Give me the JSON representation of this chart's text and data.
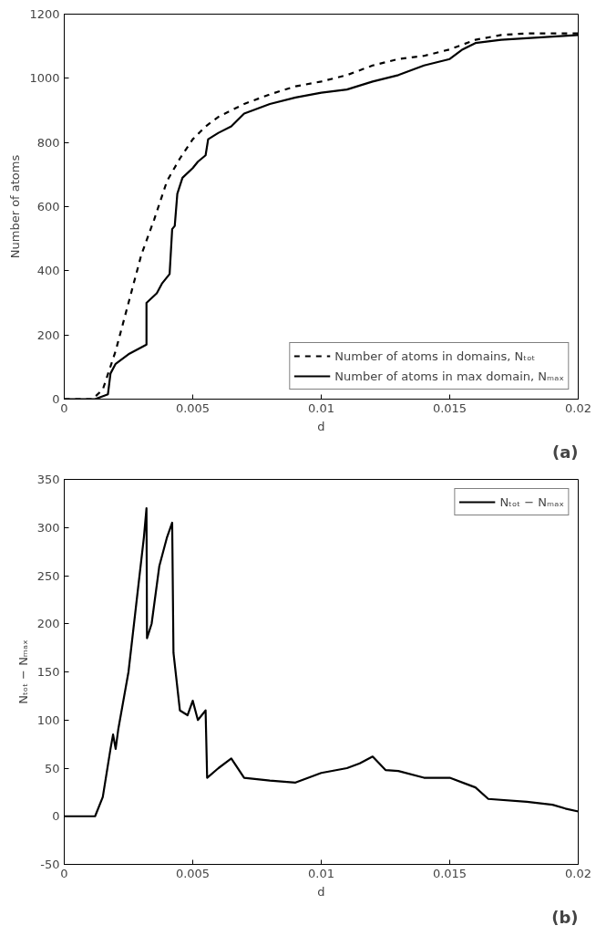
{
  "chart_data": [
    {
      "type": "line",
      "xlabel": "d",
      "ylabel": "Number of atoms",
      "xlim": [
        0,
        0.02
      ],
      "ylim": [
        0,
        1200
      ],
      "xticks": [
        0,
        0.005,
        0.01,
        0.015,
        0.02
      ],
      "yticks": [
        0,
        200,
        400,
        600,
        800,
        1000,
        1200
      ],
      "legend": "bottom right",
      "grid": false,
      "annotations": [
        "(a)"
      ],
      "series": [
        {
          "name": "Number of atoms in domains, Nₜₒₜ",
          "color": "#000000",
          "line_style": "dashed",
          "x": [
            0,
            0.0011,
            0.0015,
            0.002,
            0.0025,
            0.003,
            0.0035,
            0.004,
            0.0045,
            0.005,
            0.0055,
            0.006,
            0.007,
            0.008,
            0.009,
            0.01,
            0.011,
            0.012,
            0.013,
            0.014,
            0.015,
            0.016,
            0.017,
            0.018,
            0.02
          ],
          "values": [
            0,
            0,
            30,
            150,
            300,
            450,
            560,
            680,
            750,
            810,
            850,
            880,
            920,
            950,
            975,
            990,
            1010,
            1040,
            1060,
            1070,
            1090,
            1120,
            1135,
            1140,
            1140
          ]
        },
        {
          "name": "Number of atoms in max domain, Nₘₐₓ",
          "color": "#000000",
          "line_style": "solid",
          "x": [
            0,
            0.0012,
            0.0017,
            0.0018,
            0.002,
            0.0025,
            0.0032,
            0.0032,
            0.0036,
            0.0038,
            0.0041,
            0.0042,
            0.0043,
            0.0044,
            0.0046,
            0.005,
            0.0052,
            0.0055,
            0.0056,
            0.006,
            0.0065,
            0.007,
            0.008,
            0.009,
            0.01,
            0.011,
            0.012,
            0.013,
            0.014,
            0.015,
            0.0155,
            0.016,
            0.017,
            0.018,
            0.02
          ],
          "values": [
            0,
            0,
            15,
            80,
            110,
            140,
            170,
            300,
            330,
            360,
            390,
            530,
            540,
            640,
            690,
            720,
            740,
            760,
            810,
            830,
            850,
            890,
            920,
            940,
            955,
            965,
            990,
            1010,
            1040,
            1060,
            1090,
            1110,
            1120,
            1125,
            1135
          ]
        }
      ]
    },
    {
      "type": "line",
      "xlabel": "d",
      "ylabel": "Nₜₒₜ − Nₘₐₓ",
      "xlim": [
        0,
        0.02
      ],
      "ylim": [
        -50,
        350
      ],
      "xticks": [
        0,
        0.005,
        0.01,
        0.015,
        0.02
      ],
      "yticks": [
        -50,
        0,
        50,
        100,
        150,
        200,
        250,
        300,
        350
      ],
      "legend": "top right",
      "grid": false,
      "annotations": [
        "(b)"
      ],
      "series": [
        {
          "name": "Nₜₒₜ − Nₘₐₓ",
          "color": "#000000",
          "line_style": "solid",
          "x": [
            0,
            0.0011,
            0.0012,
            0.0015,
            0.0018,
            0.0019,
            0.002,
            0.0021,
            0.0025,
            0.0028,
            0.0031,
            0.0032,
            0.00322,
            0.0034,
            0.0037,
            0.004,
            0.0042,
            0.00425,
            0.0045,
            0.0048,
            0.005,
            0.0052,
            0.0055,
            0.00556,
            0.006,
            0.0065,
            0.007,
            0.008,
            0.009,
            0.0095,
            0.01,
            0.011,
            0.0115,
            0.012,
            0.0125,
            0.013,
            0.014,
            0.015,
            0.016,
            0.0165,
            0.018,
            0.019,
            0.0195,
            0.02
          ],
          "values": [
            0,
            0,
            0,
            20,
            70,
            85,
            70,
            90,
            150,
            220,
            290,
            320,
            185,
            200,
            260,
            290,
            305,
            170,
            110,
            105,
            120,
            100,
            110,
            40,
            50,
            60,
            40,
            37,
            35,
            40,
            45,
            50,
            55,
            62,
            48,
            47,
            40,
            40,
            30,
            18,
            15,
            12,
            8,
            5
          ]
        }
      ]
    }
  ]
}
